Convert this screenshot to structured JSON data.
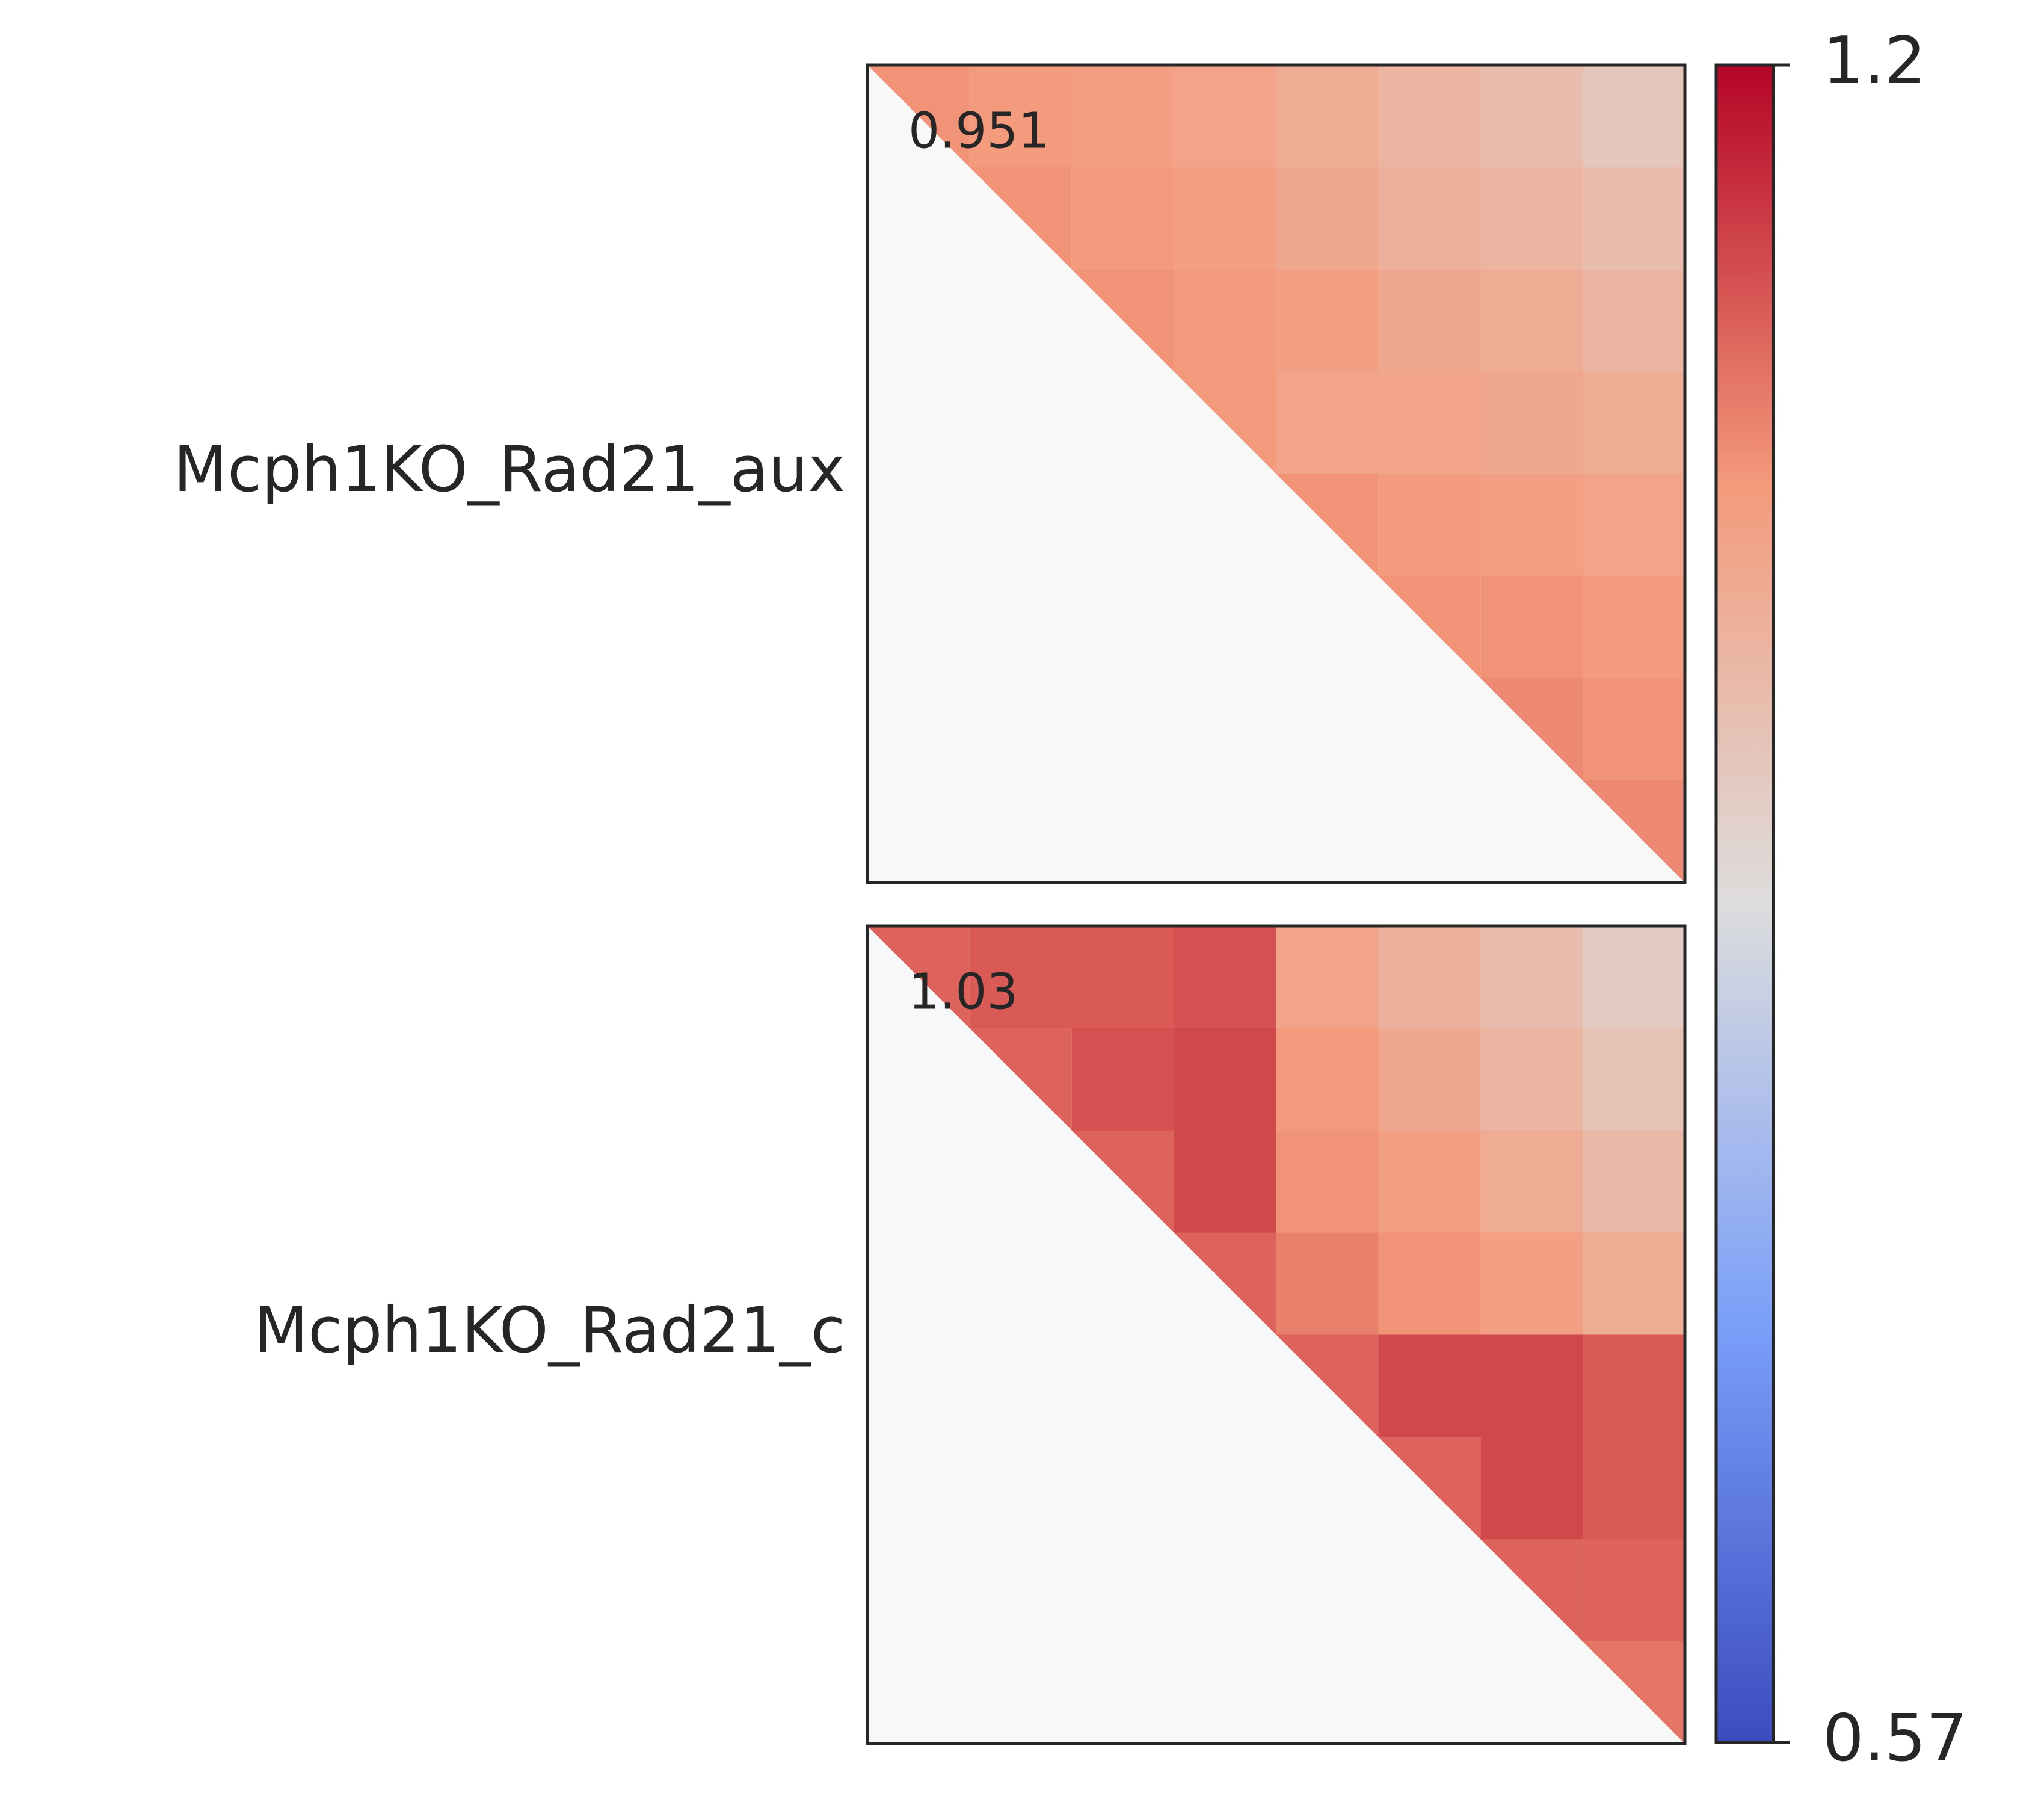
{
  "chart_data": [
    {
      "type": "heatmap",
      "label": "Mcph1KO_Rad21_aux",
      "annotation": 0.951,
      "values": [
        [
          1.05,
          1.04,
          1.03,
          1.02,
          1.0,
          0.98,
          0.96,
          0.94
        ],
        [
          null,
          1.05,
          1.04,
          1.03,
          1.01,
          0.99,
          0.98,
          0.96
        ],
        [
          null,
          null,
          1.05,
          1.04,
          1.03,
          1.01,
          1.0,
          0.98
        ],
        [
          null,
          null,
          null,
          1.04,
          1.02,
          1.02,
          1.01,
          1.0
        ],
        [
          null,
          null,
          null,
          null,
          1.05,
          1.04,
          1.03,
          1.02
        ],
        [
          null,
          null,
          null,
          null,
          null,
          1.05,
          1.05,
          1.04
        ],
        [
          null,
          null,
          null,
          null,
          null,
          null,
          1.06,
          1.05
        ],
        [
          null,
          null,
          null,
          null,
          null,
          null,
          null,
          1.06
        ]
      ]
    },
    {
      "type": "heatmap",
      "label": "Mcph1KO_Rad21_c",
      "annotation": 1.03,
      "values": [
        [
          1.1,
          1.11,
          1.11,
          1.12,
          1.02,
          0.99,
          0.96,
          0.93
        ],
        [
          null,
          1.1,
          1.12,
          1.13,
          1.04,
          1.01,
          0.98,
          0.95
        ],
        [
          null,
          null,
          1.1,
          1.13,
          1.05,
          1.03,
          1.0,
          0.97
        ],
        [
          null,
          null,
          null,
          1.1,
          1.07,
          1.05,
          1.03,
          1.0
        ],
        [
          null,
          null,
          null,
          null,
          1.1,
          1.13,
          1.13,
          1.11
        ],
        [
          null,
          null,
          null,
          null,
          null,
          1.1,
          1.13,
          1.11
        ],
        [
          null,
          null,
          null,
          null,
          null,
          null,
          1.1,
          1.1
        ],
        [
          null,
          null,
          null,
          null,
          null,
          null,
          null,
          1.08
        ]
      ]
    }
  ],
  "colorbar": {
    "cmap": "coolwarm",
    "clim": [
      0.57,
      1.2
    ],
    "ticks": [
      0.57,
      1.2
    ]
  }
}
